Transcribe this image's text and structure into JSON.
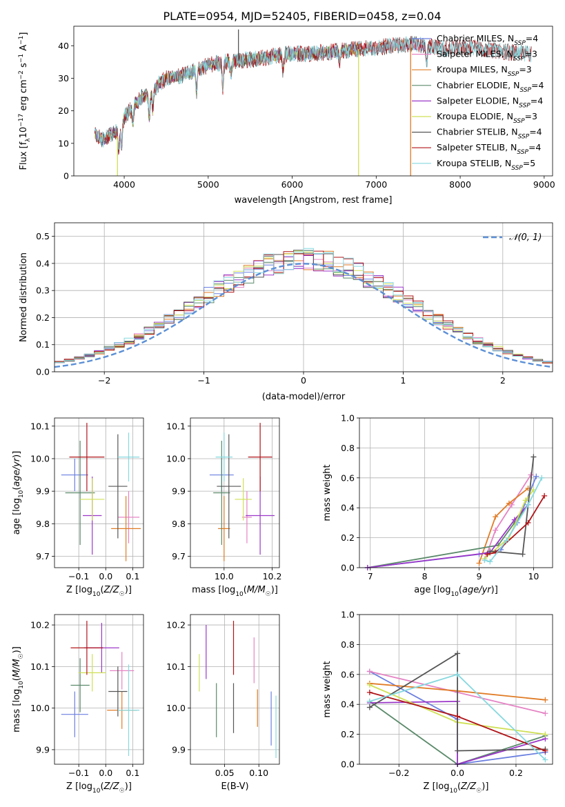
{
  "title": "PLATE=0954, MJD=52405, FIBERID=0458, z=0.04",
  "colors": {
    "Chabrier MILES": "#6a7fe0",
    "Salpeter MILES": "#e583c4",
    "Kroupa MILES": "#e07b25",
    "Chabrier ELODIE": "#5a8a6a",
    "Salpeter ELODIE": "#9b36c8",
    "Kroupa ELODIE": "#cfe054",
    "Chabrier STELIB": "#555555",
    "Salpeter STELIB": "#b01418",
    "Kroupa STELIB": "#86d8df",
    "normal": "#5b8fd6"
  },
  "chart_data": [
    {
      "id": "spectrum",
      "type": "line",
      "xlabel": "wavelength [Angstrom, rest frame]",
      "ylabel": "Flux [f_λ 10^-17 erg cm^-2 s^-1 A^-1]",
      "xlim": [
        3400,
        9100
      ],
      "ylim": [
        0,
        46
      ],
      "xticks": [
        4000,
        5000,
        6000,
        7000,
        8000,
        9000
      ],
      "yticks": [
        0,
        10,
        20,
        30,
        40
      ],
      "legend_position": "right",
      "continuum": [
        [
          3650,
          13
        ],
        [
          3750,
          11
        ],
        [
          3850,
          13
        ],
        [
          3950,
          14
        ],
        [
          4000,
          18
        ],
        [
          4100,
          21
        ],
        [
          4200,
          24
        ],
        [
          4300,
          25
        ],
        [
          4400,
          28
        ],
        [
          4500,
          30
        ],
        [
          4700,
          31
        ],
        [
          4900,
          33
        ],
        [
          5000,
          34
        ],
        [
          5200,
          35
        ],
        [
          5400,
          35.5
        ],
        [
          5600,
          36
        ],
        [
          5800,
          37
        ],
        [
          6000,
          37.5
        ],
        [
          6200,
          37.5
        ],
        [
          6400,
          38
        ],
        [
          6600,
          38.5
        ],
        [
          6800,
          39
        ],
        [
          7000,
          39.5
        ],
        [
          7200,
          40
        ],
        [
          7400,
          40.5
        ],
        [
          7600,
          40
        ],
        [
          7800,
          39
        ],
        [
          8000,
          39.5
        ],
        [
          8200,
          39.5
        ],
        [
          8400,
          38.5
        ],
        [
          8600,
          38
        ],
        [
          8850,
          37.5
        ]
      ],
      "absorption_features": [
        [
          3934,
          6
        ],
        [
          3968,
          6
        ],
        [
          4102,
          5
        ],
        [
          4300,
          7
        ],
        [
          4340,
          6
        ],
        [
          4861,
          7
        ],
        [
          5175,
          8
        ],
        [
          5270,
          4
        ],
        [
          5892,
          5
        ],
        [
          6563,
          3
        ],
        [
          7600,
          5
        ]
      ],
      "spikes": [
        [
          3920,
          0,
          "Kroupa ELODIE"
        ],
        [
          6790,
          0,
          "Kroupa ELODIE"
        ],
        [
          7410,
          0,
          "Kroupa MILES"
        ],
        [
          5360,
          45,
          "Chabrier STELIB"
        ]
      ],
      "series": [
        {
          "name": "Chabrier MILES",
          "legend": "Chabrier MILES, N",
          "nssp": "4",
          "range": [
            3650,
            7600
          ]
        },
        {
          "name": "Salpeter MILES",
          "legend": "Salpeter MILES, N",
          "nssp": "3",
          "range": [
            3650,
            7600
          ]
        },
        {
          "name": "Kroupa MILES",
          "legend": "Kroupa MILES, N",
          "nssp": "3",
          "range": [
            3650,
            7420
          ]
        },
        {
          "name": "Chabrier ELODIE",
          "legend": "Chabrier ELODIE, N",
          "nssp": "4",
          "range": [
            3650,
            6800
          ]
        },
        {
          "name": "Salpeter ELODIE",
          "legend": "Salpeter ELODIE, N",
          "nssp": "4",
          "range": [
            3650,
            6800
          ]
        },
        {
          "name": "Kroupa ELODIE",
          "legend": "Kroupa ELODIE, N",
          "nssp": "3",
          "range": [
            3650,
            6790
          ]
        },
        {
          "name": "Chabrier STELIB",
          "legend": "Chabrier STELIB, N",
          "nssp": "4",
          "range": [
            3650,
            8850
          ]
        },
        {
          "name": "Salpeter STELIB",
          "legend": "Salpeter STELIB, N",
          "nssp": "4",
          "range": [
            3650,
            8850
          ]
        },
        {
          "name": "Kroupa STELIB",
          "legend": "Kroupa STELIB, N",
          "nssp": "5",
          "range": [
            3650,
            8850
          ]
        }
      ]
    },
    {
      "id": "residuals",
      "type": "histogram",
      "xlabel": "(data-model)/error",
      "ylabel": "Normed distribution",
      "xlim": [
        -2.5,
        2.5
      ],
      "ylim": [
        0,
        0.55
      ],
      "xticks": [
        -2,
        -1,
        0,
        1,
        2
      ],
      "yticks": [
        0.0,
        0.1,
        0.2,
        0.3,
        0.4,
        0.5
      ],
      "grid": true,
      "bin_width": 0.1,
      "legend": "𝒩(0, 1)",
      "legend_position": "top-right",
      "series_approx": "nine step histograms close to a unit normal, peak values 0.42–0.52 near 0"
    },
    {
      "id": "age_vs_Z",
      "type": "scatter",
      "xlabel": "Z [log10(Z/Z☉)]",
      "ylabel": "age  [log10(age/yr)]",
      "xlim": [
        -0.19,
        0.14
      ],
      "ylim": [
        9.665,
        10.125
      ],
      "xticks": [
        -0.1,
        0.0,
        0.1
      ],
      "yticks": [
        9.7,
        9.8,
        9.9,
        10.0,
        10.1
      ],
      "grid": true,
      "points": [
        {
          "series": "Chabrier MILES",
          "x": -0.115,
          "y": 9.95,
          "xerr": 0.05,
          "yerr": 0.05
        },
        {
          "series": "Salpeter MILES",
          "x": 0.085,
          "y": 9.82,
          "xerr": 0.04,
          "yerr": 0.08
        },
        {
          "series": "Kroupa MILES",
          "x": 0.075,
          "y": 9.785,
          "xerr": 0.055,
          "yerr": 0.1
        },
        {
          "series": "Chabrier ELODIE",
          "x": -0.095,
          "y": 9.895,
          "xerr": 0.055,
          "yerr": 0.16
        },
        {
          "series": "Salpeter ELODIE",
          "x": -0.05,
          "y": 9.825,
          "xerr": 0.035,
          "yerr": 0.12
        },
        {
          "series": "Kroupa ELODIE",
          "x": -0.05,
          "y": 9.875,
          "xerr": 0.045,
          "yerr": 0.065
        },
        {
          "series": "Chabrier STELIB",
          "x": 0.045,
          "y": 9.915,
          "xerr": 0.035,
          "yerr": 0.16
        },
        {
          "series": "Salpeter STELIB",
          "x": -0.07,
          "y": 10.005,
          "xerr": 0.065,
          "yerr": 0.105
        },
        {
          "series": "Kroupa STELIB",
          "x": 0.085,
          "y": 10.005,
          "xerr": 0.04,
          "yerr": 0.075
        }
      ]
    },
    {
      "id": "age_vs_mass",
      "type": "scatter",
      "xlabel": "mass [log10(M/M☉)]",
      "ylabel": "",
      "xlim": [
        9.86,
        10.23
      ],
      "ylim": [
        9.665,
        10.125
      ],
      "xticks": [
        10.0,
        10.2
      ],
      "yticks": [
        9.7,
        9.8,
        9.9,
        10.0,
        10.1
      ],
      "grid": true,
      "points": [
        {
          "series": "Chabrier MILES",
          "x": 9.99,
          "y": 9.95,
          "xerr": 0.05,
          "yerr": 0.05
        },
        {
          "series": "Salpeter MILES",
          "x": 10.095,
          "y": 9.82,
          "xerr": 0.02,
          "yerr": 0.08
        },
        {
          "series": "Kroupa MILES",
          "x": 10.0,
          "y": 9.785,
          "xerr": 0.025,
          "yerr": 0.1
        },
        {
          "series": "Chabrier ELODIE",
          "x": 9.99,
          "y": 9.895,
          "xerr": 0.035,
          "yerr": 0.16
        },
        {
          "series": "Salpeter ELODIE",
          "x": 10.15,
          "y": 9.825,
          "xerr": 0.06,
          "yerr": 0.12
        },
        {
          "series": "Kroupa ELODIE",
          "x": 10.08,
          "y": 9.875,
          "xerr": 0.035,
          "yerr": 0.065
        },
        {
          "series": "Chabrier STELIB",
          "x": 10.02,
          "y": 9.915,
          "xerr": 0.05,
          "yerr": 0.16
        },
        {
          "series": "Salpeter STELIB",
          "x": 10.15,
          "y": 10.005,
          "xerr": 0.05,
          "yerr": 0.105
        },
        {
          "series": "Kroupa STELIB",
          "x": 10.0,
          "y": 10.005,
          "xerr": 0.035,
          "yerr": 0.075
        }
      ]
    },
    {
      "id": "mass_weight_vs_age",
      "type": "line",
      "xlabel": "age  [log10(age/yr)]",
      "ylabel": "mass weight",
      "xlim": [
        6.8,
        10.35
      ],
      "ylim": [
        0.0,
        1.0
      ],
      "xticks": [
        7,
        8,
        9,
        10
      ],
      "yticks": [
        0.0,
        0.2,
        0.4,
        0.6,
        0.8,
        1.0
      ],
      "grid": true,
      "series": [
        {
          "name": "Chabrier MILES",
          "points": [
            [
              6.95,
              0.0
            ],
            [
              9.0,
              0.09
            ],
            [
              9.4,
              0.12
            ],
            [
              9.7,
              0.3
            ],
            [
              10.05,
              0.61
            ]
          ]
        },
        {
          "name": "Salpeter MILES",
          "points": [
            [
              9.1,
              0.05
            ],
            [
              9.3,
              0.25
            ],
            [
              9.6,
              0.42
            ],
            [
              9.95,
              0.62
            ]
          ]
        },
        {
          "name": "Kroupa MILES",
          "points": [
            [
              9.0,
              0.03
            ],
            [
              9.3,
              0.34
            ],
            [
              9.55,
              0.43
            ],
            [
              9.9,
              0.53
            ]
          ]
        },
        {
          "name": "Chabrier ELODIE",
          "points": [
            [
              6.95,
              0.0
            ],
            [
              9.35,
              0.15
            ],
            [
              9.65,
              0.3
            ],
            [
              9.9,
              0.42
            ]
          ]
        },
        {
          "name": "Salpeter ELODIE",
          "points": [
            [
              6.95,
              0.0
            ],
            [
              9.2,
              0.1
            ],
            [
              9.65,
              0.32
            ],
            [
              9.9,
              0.42
            ]
          ]
        },
        {
          "name": "Kroupa ELODIE",
          "points": [
            [
              9.1,
              0.06
            ],
            [
              9.55,
              0.2
            ],
            [
              9.85,
              0.45
            ],
            [
              10.0,
              0.52
            ]
          ]
        },
        {
          "name": "Chabrier STELIB",
          "points": [
            [
              9.2,
              0.11
            ],
            [
              9.8,
              0.09
            ],
            [
              10.0,
              0.74
            ]
          ]
        },
        {
          "name": "Salpeter STELIB",
          "points": [
            [
              9.15,
              0.09
            ],
            [
              9.3,
              0.1
            ],
            [
              9.9,
              0.3
            ],
            [
              10.2,
              0.48
            ]
          ]
        },
        {
          "name": "Kroupa STELIB",
          "points": [
            [
              9.1,
              0.05
            ],
            [
              9.2,
              0.04
            ],
            [
              9.5,
              0.18
            ],
            [
              9.9,
              0.42
            ],
            [
              10.15,
              0.6
            ]
          ]
        }
      ]
    },
    {
      "id": "mass_vs_Z",
      "type": "scatter",
      "xlabel": "Z [log10(Z/Z☉)]",
      "ylabel": "mass [log10(M/M☉)]",
      "xlim": [
        -0.19,
        0.14
      ],
      "ylim": [
        9.865,
        10.225
      ],
      "xticks": [
        -0.1,
        0.0,
        0.1
      ],
      "yticks": [
        9.9,
        10.0,
        10.1,
        10.2
      ],
      "grid": true,
      "points": [
        {
          "series": "Chabrier MILES",
          "x": -0.115,
          "y": 9.985,
          "xerr": 0.05,
          "yerr": 0.055
        },
        {
          "series": "Salpeter MILES",
          "x": 0.06,
          "y": 10.09,
          "xerr": 0.045,
          "yerr": 0.045
        },
        {
          "series": "Kroupa MILES",
          "x": 0.06,
          "y": 9.995,
          "xerr": 0.055,
          "yerr": 0.045
        },
        {
          "series": "Chabrier ELODIE",
          "x": -0.095,
          "y": 10.055,
          "xerr": 0.035,
          "yerr": 0.065
        },
        {
          "series": "Salpeter ELODIE",
          "x": -0.015,
          "y": 10.145,
          "xerr": 0.065,
          "yerr": 0.06
        },
        {
          "series": "Kroupa ELODIE",
          "x": -0.05,
          "y": 10.085,
          "xerr": 0.05,
          "yerr": 0.045
        },
        {
          "series": "Chabrier STELIB",
          "x": 0.045,
          "y": 10.04,
          "xerr": 0.035,
          "yerr": 0.06
        },
        {
          "series": "Salpeter STELIB",
          "x": -0.07,
          "y": 10.145,
          "xerr": 0.06,
          "yerr": 0.065
        },
        {
          "series": "Kroupa STELIB",
          "x": 0.085,
          "y": 9.995,
          "xerr": 0.04,
          "yerr": 0.11
        }
      ]
    },
    {
      "id": "mass_vs_EBV",
      "type": "scatter",
      "xlabel": "E(B-V)",
      "ylabel": "",
      "xlim": [
        0.0,
        0.13
      ],
      "ylim": [
        9.865,
        10.225
      ],
      "xticks": [
        0.05,
        0.1
      ],
      "yticks": [
        9.9,
        10.0,
        10.1,
        10.2
      ],
      "grid": true,
      "points": [
        {
          "series": "Chabrier MILES",
          "x": 0.118,
          "y": 9.975,
          "xerr": 0,
          "yerr": 0.065
        },
        {
          "series": "Salpeter MILES",
          "x": 0.093,
          "y": 10.115,
          "xerr": 0,
          "yerr": 0.055
        },
        {
          "series": "Kroupa MILES",
          "x": 0.098,
          "y": 10.0,
          "xerr": 0,
          "yerr": 0.045
        },
        {
          "series": "Chabrier ELODIE",
          "x": 0.038,
          "y": 9.995,
          "xerr": 0,
          "yerr": 0.065
        },
        {
          "series": "Salpeter ELODIE",
          "x": 0.023,
          "y": 10.135,
          "xerr": 0,
          "yerr": 0.065
        },
        {
          "series": "Kroupa ELODIE",
          "x": 0.013,
          "y": 10.085,
          "xerr": 0,
          "yerr": 0.045
        },
        {
          "series": "Chabrier STELIB",
          "x": 0.063,
          "y": 10.0,
          "xerr": 0,
          "yerr": 0.06
        },
        {
          "series": "Salpeter STELIB",
          "x": 0.063,
          "y": 10.145,
          "xerr": 0,
          "yerr": 0.065
        },
        {
          "series": "Kroupa STELIB",
          "x": 0.125,
          "y": 9.955,
          "xerr": 0,
          "yerr": 0.075
        }
      ]
    },
    {
      "id": "mass_weight_vs_Z",
      "type": "line",
      "xlabel": "Z [log10(Z/Z☉)]",
      "ylabel": "mass weight",
      "xlim": [
        -0.335,
        0.325
      ],
      "ylim": [
        0.0,
        1.0
      ],
      "xticks": [
        -0.2,
        0.0,
        0.2
      ],
      "yticks": [
        0.0,
        0.2,
        0.4,
        0.6,
        0.8,
        1.0
      ],
      "grid": true,
      "series": [
        {
          "name": "Chabrier MILES",
          "points": [
            [
              -0.3,
              0.62
            ],
            [
              0.0,
              0.3
            ],
            [
              0.0,
              0.0
            ],
            [
              0.3,
              0.08
            ]
          ]
        },
        {
          "name": "Salpeter MILES",
          "points": [
            [
              -0.3,
              0.62
            ],
            [
              0.0,
              0.48
            ],
            [
              0.3,
              0.34
            ]
          ]
        },
        {
          "name": "Kroupa MILES",
          "points": [
            [
              -0.3,
              0.54
            ],
            [
              0.0,
              0.49
            ],
            [
              0.3,
              0.43
            ]
          ]
        },
        {
          "name": "Chabrier ELODIE",
          "points": [
            [
              -0.3,
              0.42
            ],
            [
              0.0,
              0.0
            ],
            [
              0.3,
              0.19
            ]
          ]
        },
        {
          "name": "Salpeter ELODIE",
          "points": [
            [
              -0.3,
              0.41
            ],
            [
              0.0,
              0.42
            ],
            [
              0.0,
              0.0
            ],
            [
              0.3,
              0.17
            ]
          ]
        },
        {
          "name": "Kroupa ELODIE",
          "points": [
            [
              -0.3,
              0.53
            ],
            [
              0.0,
              0.28
            ],
            [
              0.3,
              0.2
            ]
          ]
        },
        {
          "name": "Chabrier STELIB",
          "points": [
            [
              -0.3,
              0.38
            ],
            [
              0.0,
              0.74
            ],
            [
              0.0,
              0.09
            ],
            [
              0.3,
              0.1
            ]
          ]
        },
        {
          "name": "Salpeter STELIB",
          "points": [
            [
              -0.3,
              0.48
            ],
            [
              0.0,
              0.32
            ],
            [
              0.3,
              0.09
            ]
          ]
        },
        {
          "name": "Kroupa STELIB",
          "points": [
            [
              -0.3,
              0.42
            ],
            [
              0.0,
              0.6
            ],
            [
              0.3,
              0.03
            ]
          ]
        }
      ]
    }
  ]
}
